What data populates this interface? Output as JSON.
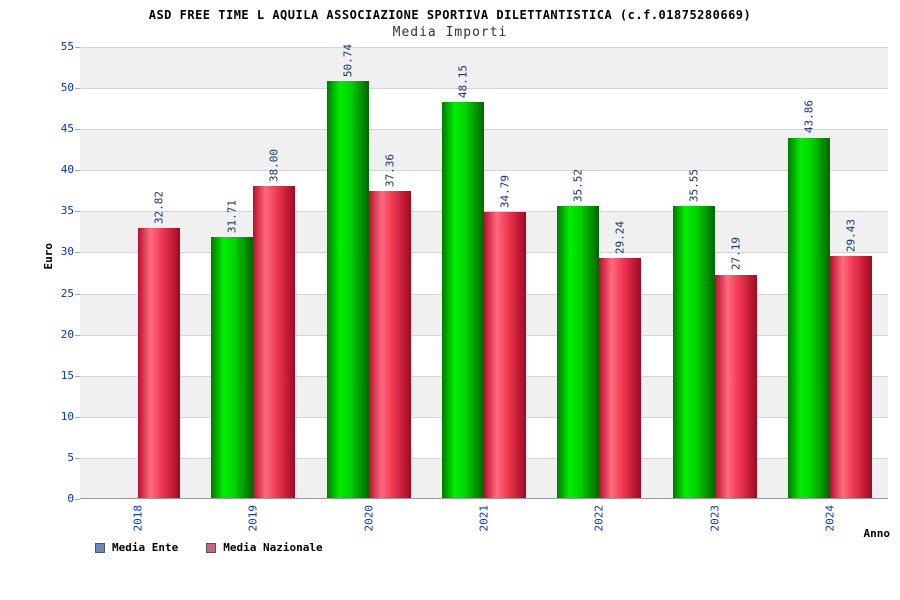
{
  "header": {
    "title": "ASD FREE TIME L AQUILA ASSOCIAZIONE SPORTIVA DILETTANTISTICA (c.f.01875280669)",
    "subtitle": "Media Importi"
  },
  "chart_data": {
    "type": "bar",
    "title": "ASD FREE TIME L AQUILA ASSOCIAZIONE SPORTIVA DILETTANTISTICA (c.f.01875280669)",
    "subtitle": "Media Importi",
    "categories": [
      "2018",
      "2019",
      "2020",
      "2021",
      "2022",
      "2023",
      "2024"
    ],
    "series": [
      {
        "name": "Media Ente",
        "bar_color": "#00cc00",
        "legend_color": "#6688bb",
        "values": [
          null,
          31.71,
          50.74,
          48.15,
          35.52,
          35.55,
          43.86
        ]
      },
      {
        "name": "Media Nazionale",
        "bar_color": "#e8294a",
        "legend_color": "#cc6680",
        "values": [
          32.82,
          38.0,
          37.36,
          34.79,
          29.24,
          27.19,
          29.43
        ]
      }
    ],
    "xlabel": "Anno",
    "ylabel": "Euro",
    "ylim": [
      0,
      55
    ],
    "ytick_step": 5,
    "grid": true,
    "background_bands": true,
    "legend_position": "bottom-left",
    "tick_label_color": "#0033cc",
    "value_label_color": "#14316e"
  }
}
